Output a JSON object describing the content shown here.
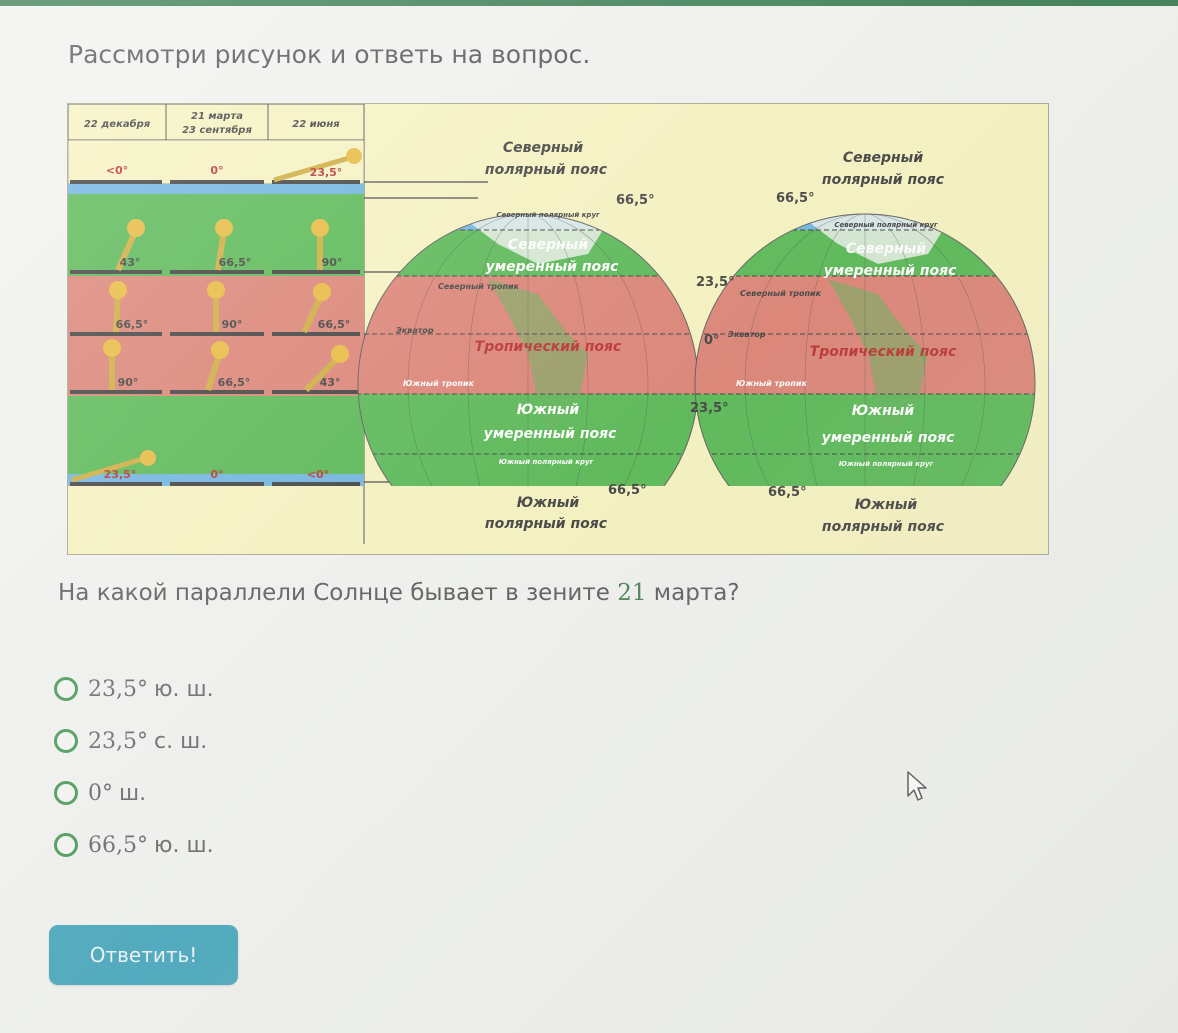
{
  "question": {
    "title": "Рассмотри рисунок и ответь на вопрос.",
    "prompt_before": "На какой параллели Солнце бывает в зените ",
    "prompt_number": "21",
    "prompt_after": " марта?"
  },
  "figure": {
    "table": {
      "headers": [
        "22 декабря",
        "21 марта\n23 сентября",
        "22 июня"
      ],
      "header_line1_col2": "21 марта",
      "header_line2_col2": "23 сентября",
      "rows": [
        [
          "<0°",
          "0°",
          "23,5°"
        ],
        [
          "43°",
          "66,5°",
          "90°"
        ],
        [
          "66,5°",
          "90°",
          "66,5°"
        ],
        [
          "90°",
          "66,5°",
          "43°"
        ],
        [
          "23,5°",
          "0°",
          "<0°"
        ]
      ]
    },
    "globe_labels": {
      "north_polar_1": "Северный",
      "north_polar_2": "полярный пояс",
      "north_circle": "Северный полярный круг",
      "north_temperate_1": "Северный",
      "north_temperate_2": "умеренный пояс",
      "north_tropic": "Северный тропик",
      "equator": "Экватор",
      "tropical": "Тропический пояс",
      "south_tropic": "Южный тропик",
      "south_temperate_1": "Южный",
      "south_temperate_2": "умеренный пояс",
      "south_circle": "Южный полярный круг",
      "south_polar_1": "Южный",
      "south_polar_2": "полярный пояс"
    },
    "degree_labels": {
      "d665": "66,5°",
      "d235": "23,5°",
      "d0": "0°"
    }
  },
  "answers": [
    {
      "num": "23,5°",
      "txt": "ю. ш."
    },
    {
      "num": "23,5°",
      "txt": "с. ш."
    },
    {
      "num": "0°",
      "txt": "ш."
    },
    {
      "num": "66,5°",
      "txt": "ю. ш."
    }
  ],
  "submit_label": "Ответить!",
  "colors": {
    "polar_blue": "#5aa9dc",
    "temperate_green": "#3fae3a",
    "tropical_red": "#d87060",
    "figure_bg": "#f6f2b8",
    "accent_green": "#2f8a3e",
    "button": "#2f9bb4"
  }
}
